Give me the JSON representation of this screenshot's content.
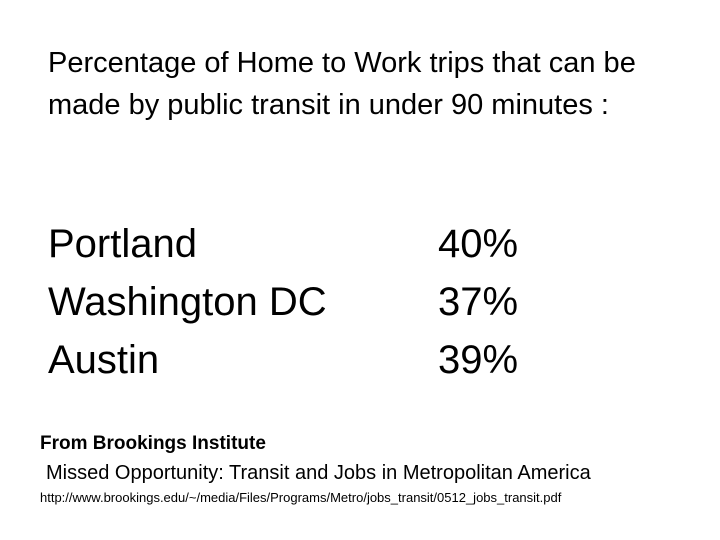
{
  "heading": "Percentage of Home to Work trips that can be made by public transit in under 90 minutes :",
  "cities": [
    {
      "name": "Portland",
      "value": "40%"
    },
    {
      "name": "Washington DC",
      "value": "37%"
    },
    {
      "name": "Austin",
      "value": "39%"
    }
  ],
  "source": {
    "title": "From Brookings Institute",
    "report": "Missed Opportunity: Transit and Jobs in Metropolitan America",
    "url": "http://www.brookings.edu/~/media/Files/Programs/Metro/jobs_transit/0512_jobs_transit.pdf"
  }
}
